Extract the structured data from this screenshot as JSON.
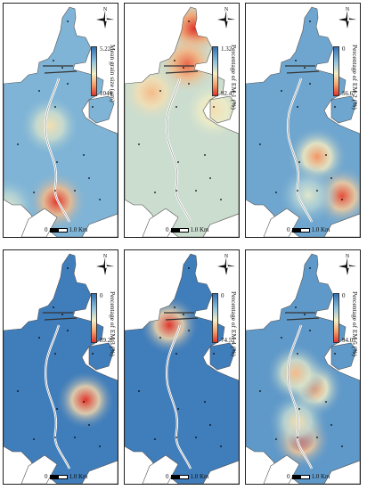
{
  "north_label": "N",
  "scale": {
    "zero": "0",
    "dist": "1.0",
    "unit": "Km"
  },
  "panels": [
    {
      "title": "Mean grain size (μm)",
      "top": "5.22",
      "bottom": "1044",
      "hot": [
        [
          60,
          222,
          1.0
        ],
        [
          52,
          137,
          0.6
        ],
        [
          4,
          228,
          0.5
        ]
      ],
      "base": 0.25
    },
    {
      "title": "Percentage of EM 1 (%)",
      "top": "1.32",
      "bottom": "92.47",
      "hot": [
        [
          78,
          28,
          1.0
        ],
        [
          70,
          68,
          0.9
        ],
        [
          30,
          100,
          0.7
        ],
        [
          100,
          120,
          0.6
        ]
      ],
      "base": 0.45
    },
    {
      "title": "Percentage of EM 2 (%)",
      "top": "0",
      "bottom": "56.67",
      "hot": [
        [
          80,
          172,
          0.8
        ],
        [
          108,
          216,
          0.95
        ],
        [
          70,
          215,
          0.5
        ]
      ],
      "base": 0.2
    },
    {
      "title": "Percentage of EM 3 (%)",
      "top": "0",
      "bottom": "89.26",
      "hot": [
        [
          92,
          168,
          1.0
        ]
      ],
      "base": 0.05
    },
    {
      "title": "Percentage of EM 4 (%)",
      "top": "0",
      "bottom": "74.51",
      "hot": [
        [
          50,
          84,
          1.0
        ]
      ],
      "base": 0.05
    },
    {
      "title": "Percentage of EM 5 (%)",
      "top": "0",
      "bottom": "94.01",
      "hot": [
        [
          62,
          212,
          1.0
        ],
        [
          76,
          155,
          0.8
        ],
        [
          56,
          138,
          0.7
        ],
        [
          58,
          192,
          0.6
        ]
      ],
      "base": 0.15
    }
  ]
}
